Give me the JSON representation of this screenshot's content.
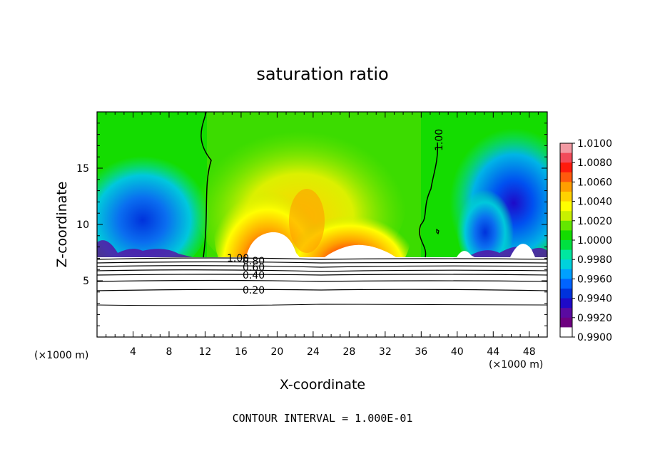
{
  "chart_data": {
    "type": "heatmap",
    "title": "saturation ratio",
    "xlabel": "X-coordinate",
    "ylabel": "Z-coordinate",
    "x_unit": "(×1000 m)",
    "z_unit": "(×1000 m)",
    "xlim": [
      0,
      50
    ],
    "ylim": [
      0,
      20
    ],
    "x_ticks": [
      "4",
      "8",
      "12",
      "16",
      "20",
      "24",
      "28",
      "32",
      "36",
      "40",
      "44",
      "48"
    ],
    "y_ticks": [
      "5",
      "10",
      "15"
    ],
    "colorbar": {
      "min": 0.99,
      "max": 1.01,
      "tick_labels": [
        "1.0100",
        "1.0080",
        "1.0060",
        "1.0040",
        "1.0020",
        "1.0000",
        "0.9980",
        "0.9960",
        "0.9940",
        "0.9920",
        "0.9900"
      ],
      "colors": [
        "#f29aa3",
        "#f24b5a",
        "#ff1a0d",
        "#ff5a0d",
        "#ff9f00",
        "#ffd200",
        "#ffff00",
        "#c8f000",
        "#64e600",
        "#14dc00",
        "#00e040",
        "#00e6a0",
        "#00d2dc",
        "#00a0ff",
        "#0064ff",
        "#0032dc",
        "#1e0ac8",
        "#5a0aa0",
        "#6e0080",
        "#ffffff"
      ]
    },
    "contour_labels": [
      "1.00",
      "1.00",
      "0.80",
      "0.60",
      "0.40",
      "0.20"
    ],
    "contour_interval_note": "CONTOUR INTERVAL = 1.000E-01"
  }
}
